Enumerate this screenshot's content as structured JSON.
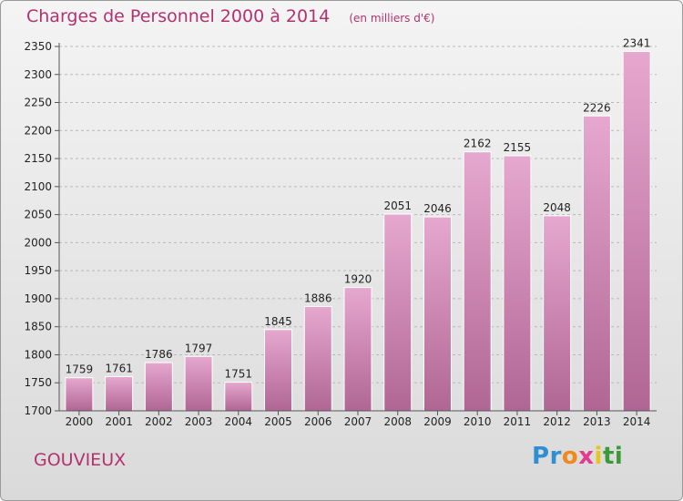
{
  "title": "Charges de Personnel 2000 à 2014",
  "subtitle": "(en milliers d'€)",
  "location": "GOUVIEUX",
  "logo": {
    "letters": [
      "P",
      "r",
      "o",
      "x",
      "i",
      "t",
      "i"
    ],
    "colors": [
      "#2f8fd0",
      "#2f8fd0",
      "#f08a1a",
      "#e23a8d",
      "#e8c51a",
      "#3a9a3a",
      "#3a9a3a"
    ]
  },
  "colors": {
    "bar_top": "#e6a8cf",
    "bar_bottom": "#b06693",
    "accent": "#b3316f"
  },
  "chart_data": {
    "type": "bar",
    "categories": [
      "2000",
      "2001",
      "2002",
      "2003",
      "2004",
      "2005",
      "2006",
      "2007",
      "2008",
      "2009",
      "2010",
      "2011",
      "2012",
      "2013",
      "2014"
    ],
    "values": [
      1759,
      1761,
      1786,
      1797,
      1751,
      1845,
      1886,
      1920,
      2051,
      2046,
      2162,
      2155,
      2048,
      2226,
      2341
    ],
    "ylim": [
      1700,
      2350
    ],
    "yticks": [
      1700,
      1750,
      1800,
      1850,
      1900,
      1950,
      2000,
      2050,
      2100,
      2150,
      2200,
      2250,
      2300,
      2350
    ],
    "grid": true,
    "data_labels": true
  }
}
